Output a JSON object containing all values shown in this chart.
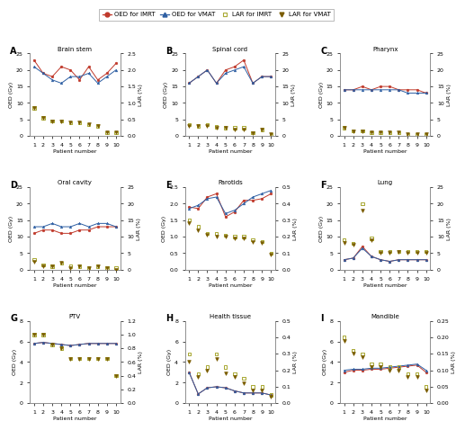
{
  "patients": [
    1,
    2,
    3,
    4,
    5,
    6,
    7,
    8,
    9,
    10
  ],
  "panels": {
    "A": {
      "title": "Brain stem",
      "oed_imrt": [
        23,
        19,
        18,
        21,
        20,
        17,
        21,
        17,
        19,
        22
      ],
      "oed_vmat": [
        21,
        19,
        17,
        16,
        18,
        18,
        19,
        16,
        18,
        20
      ],
      "lar_imrt": [
        0.85,
        0.55,
        0.45,
        0.45,
        0.4,
        0.4,
        0.35,
        0.3,
        0.1,
        0.1
      ],
      "lar_vmat": [
        0.85,
        0.55,
        0.45,
        0.45,
        0.4,
        0.4,
        0.35,
        0.3,
        0.1,
        0.1
      ],
      "oed_ylim": [
        0,
        25
      ],
      "lar_ylim": [
        0,
        2.5
      ],
      "oed_yticks": [
        0,
        5,
        10,
        15,
        20,
        25
      ],
      "lar_yticks": [
        0,
        0.5,
        1.0,
        1.5,
        2.0,
        2.5
      ],
      "oed_ylabel": "OED (Gy)",
      "lar_ylabel": "LAR (%)"
    },
    "B": {
      "title": "Spinal cord",
      "oed_imrt": [
        16,
        18,
        20,
        16,
        20,
        21,
        23,
        16,
        18,
        18
      ],
      "oed_vmat": [
        16,
        18,
        20,
        16,
        19,
        20,
        21,
        16,
        18,
        18
      ],
      "lar_imrt": [
        3.5,
        3.0,
        3.5,
        2.8,
        2.5,
        2.5,
        2.5,
        1.0,
        2.0,
        0.5
      ],
      "lar_vmat": [
        3.0,
        3.0,
        3.0,
        2.5,
        2.5,
        2.0,
        2.0,
        0.8,
        2.0,
        0.5
      ],
      "oed_ylim": [
        0,
        25
      ],
      "lar_ylim": [
        0,
        25
      ],
      "oed_yticks": [
        0,
        5,
        10,
        15,
        20,
        25
      ],
      "lar_yticks": [
        0,
        5,
        10,
        15,
        20,
        25
      ],
      "oed_ylabel": "OED (Gy)",
      "lar_ylabel": "LAR (%)"
    },
    "C": {
      "title": "Pharynx",
      "oed_imrt": [
        14,
        14,
        15,
        14,
        15,
        15,
        14,
        14,
        14,
        13
      ],
      "oed_vmat": [
        14,
        14,
        14,
        14,
        14,
        14,
        14,
        13,
        13,
        13
      ],
      "lar_imrt": [
        2.5,
        1.5,
        1.5,
        1.0,
        1.0,
        1.0,
        1.0,
        0.5,
        0.5,
        0.5
      ],
      "lar_vmat": [
        2.5,
        1.5,
        1.5,
        1.0,
        1.0,
        1.0,
        1.0,
        0.5,
        0.5,
        0.5
      ],
      "oed_ylim": [
        0,
        25
      ],
      "lar_ylim": [
        0,
        25
      ],
      "oed_yticks": [
        0,
        5,
        10,
        15,
        20,
        25
      ],
      "lar_yticks": [
        0,
        5,
        10,
        15,
        20,
        25
      ],
      "oed_ylabel": "OED (Gy)",
      "lar_ylabel": "LAR (%)"
    },
    "D": {
      "title": "Oral cavity",
      "oed_imrt": [
        11,
        12,
        12,
        11,
        11,
        12,
        12,
        13,
        13,
        13
      ],
      "oed_vmat": [
        13,
        13,
        14,
        13,
        13,
        14,
        13,
        14,
        14,
        13
      ],
      "lar_imrt": [
        3.0,
        1.5,
        1.0,
        2.0,
        1.0,
        1.0,
        0.5,
        1.0,
        0.5,
        0.5
      ],
      "lar_vmat": [
        2.5,
        1.0,
        1.0,
        2.0,
        0.5,
        1.0,
        0.5,
        1.0,
        0.5,
        0.0
      ],
      "oed_ylim": [
        0,
        25
      ],
      "lar_ylim": [
        0,
        25
      ],
      "oed_yticks": [
        0,
        5,
        10,
        15,
        20,
        25
      ],
      "lar_yticks": [
        0,
        5,
        10,
        15,
        20,
        25
      ],
      "oed_ylabel": "OED (Gy)",
      "lar_ylabel": "LAR (%)"
    },
    "E": {
      "title": "Parotids",
      "oed_imrt": [
        1.9,
        1.85,
        2.2,
        2.3,
        1.6,
        1.75,
        2.1,
        2.1,
        2.15,
        2.3
      ],
      "oed_vmat": [
        1.85,
        1.95,
        2.15,
        2.2,
        1.7,
        1.8,
        2.0,
        2.2,
        2.3,
        2.4
      ],
      "lar_imrt": [
        0.3,
        0.26,
        0.22,
        0.22,
        0.21,
        0.2,
        0.2,
        0.18,
        0.17,
        0.1
      ],
      "lar_vmat": [
        0.28,
        0.24,
        0.21,
        0.2,
        0.2,
        0.19,
        0.19,
        0.17,
        0.16,
        0.09
      ],
      "oed_ylim": [
        0.0,
        2.5
      ],
      "lar_ylim": [
        0.0,
        0.5
      ],
      "oed_yticks": [
        0.0,
        0.5,
        1.0,
        1.5,
        2.0,
        2.5
      ],
      "lar_yticks": [
        0.0,
        0.1,
        0.2,
        0.3,
        0.4,
        0.5
      ],
      "oed_ylabel": "OED (Gy)",
      "lar_ylabel": "LAR (%)"
    },
    "F": {
      "title": "Lung",
      "oed_imrt": [
        3.0,
        3.5,
        7.0,
        4.0,
        3.0,
        2.5,
        3.0,
        3.0,
        3.0,
        3.0
      ],
      "oed_vmat": [
        3.0,
        3.5,
        6.5,
        4.0,
        3.0,
        2.5,
        3.0,
        3.0,
        3.0,
        3.0
      ],
      "lar_imrt": [
        9.0,
        8.0,
        20.0,
        9.5,
        5.5,
        5.5,
        5.5,
        5.5,
        5.5,
        5.5
      ],
      "lar_vmat": [
        8.0,
        7.5,
        18.0,
        9.0,
        5.0,
        5.0,
        5.5,
        5.0,
        5.0,
        5.0
      ],
      "oed_ylim": [
        0,
        25
      ],
      "lar_ylim": [
        0,
        25
      ],
      "oed_yticks": [
        0,
        5,
        10,
        15,
        20,
        25
      ],
      "lar_yticks": [
        0,
        5,
        10,
        15,
        20,
        25
      ],
      "oed_ylabel": "OED (Gy)",
      "lar_ylabel": "LAR (%)"
    },
    "G": {
      "title": "PTV",
      "oed_imrt": [
        5.8,
        5.9,
        5.8,
        5.7,
        5.6,
        5.7,
        5.8,
        5.8,
        5.8,
        5.8
      ],
      "oed_vmat": [
        5.8,
        5.9,
        5.8,
        5.7,
        5.6,
        5.7,
        5.8,
        5.8,
        5.8,
        5.8
      ],
      "lar_imrt": [
        1.0,
        1.0,
        0.85,
        0.8,
        0.65,
        0.65,
        0.65,
        0.65,
        0.65,
        0.4
      ],
      "lar_vmat": [
        1.0,
        1.0,
        0.85,
        0.8,
        0.65,
        0.65,
        0.65,
        0.65,
        0.65,
        0.4
      ],
      "oed_ylim": [
        0,
        8
      ],
      "lar_ylim": [
        0.0,
        1.2
      ],
      "oed_yticks": [
        0,
        2,
        4,
        6,
        8
      ],
      "lar_yticks": [
        0.0,
        0.2,
        0.4,
        0.6,
        0.8,
        1.0,
        1.2
      ],
      "oed_ylabel": "OED (Gy)",
      "lar_ylabel": "LAR (%)"
    },
    "H": {
      "title": "Health tissue",
      "oed_imrt": [
        3.0,
        0.9,
        1.5,
        1.6,
        1.5,
        1.2,
        1.0,
        1.0,
        1.0,
        0.8
      ],
      "oed_vmat": [
        3.0,
        0.9,
        1.5,
        1.6,
        1.5,
        1.2,
        1.0,
        1.0,
        1.0,
        0.8
      ],
      "lar_imrt": [
        0.3,
        0.18,
        0.22,
        0.3,
        0.22,
        0.18,
        0.15,
        0.1,
        0.1,
        0.05
      ],
      "lar_vmat": [
        0.25,
        0.16,
        0.2,
        0.27,
        0.18,
        0.16,
        0.12,
        0.08,
        0.08,
        0.04
      ],
      "oed_ylim": [
        0,
        8
      ],
      "lar_ylim": [
        0.0,
        0.5
      ],
      "oed_yticks": [
        0,
        2,
        4,
        6,
        8
      ],
      "lar_yticks": [
        0.0,
        0.1,
        0.2,
        0.3,
        0.4,
        0.5
      ],
      "oed_ylabel": "OED (Gy)",
      "lar_ylabel": "LAR (%)"
    },
    "I": {
      "title": "Mandible",
      "oed_imrt": [
        3.0,
        3.2,
        3.2,
        3.3,
        3.3,
        3.4,
        3.5,
        3.6,
        3.7,
        3.0
      ],
      "oed_vmat": [
        3.2,
        3.3,
        3.3,
        3.4,
        3.4,
        3.5,
        3.6,
        3.7,
        3.8,
        3.2
      ],
      "lar_imrt": [
        0.2,
        0.16,
        0.15,
        0.12,
        0.12,
        0.11,
        0.11,
        0.09,
        0.09,
        0.05
      ],
      "lar_vmat": [
        0.19,
        0.15,
        0.14,
        0.11,
        0.11,
        0.1,
        0.1,
        0.08,
        0.08,
        0.04
      ],
      "oed_ylim": [
        0,
        8
      ],
      "lar_ylim": [
        0.0,
        0.25
      ],
      "oed_yticks": [
        0,
        2,
        4,
        6,
        8
      ],
      "lar_yticks": [
        0.0,
        0.05,
        0.1,
        0.15,
        0.2,
        0.25
      ],
      "oed_ylabel": "OED (Gy)",
      "lar_ylabel": "LAR (%)"
    }
  },
  "colors": {
    "oed_imrt": "#c0392b",
    "oed_vmat": "#2e5fa3",
    "lar_imrt": "#a8a832",
    "lar_vmat": "#7a5c00"
  },
  "legend": {
    "oed_imrt": "OED for IMRT",
    "oed_vmat": "OED for VMAT",
    "lar_imrt": "LAR for IMRT",
    "lar_vmat": "LAR for VMAT"
  }
}
